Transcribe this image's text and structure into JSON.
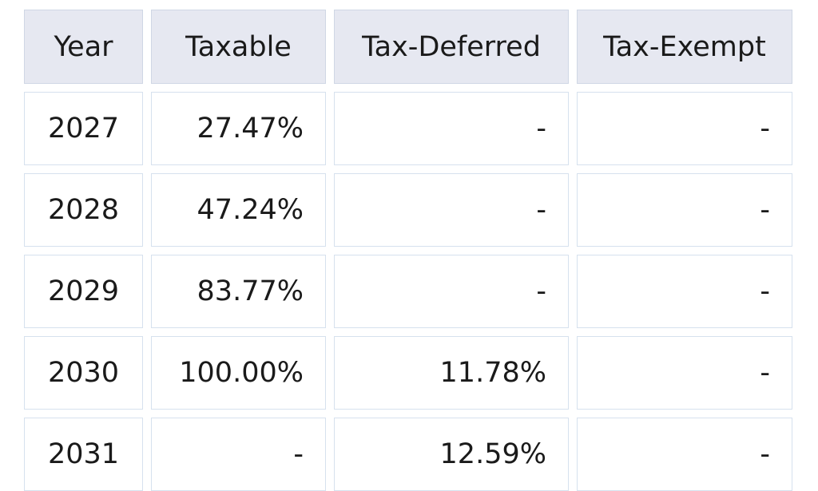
{
  "table": {
    "headers": [
      "Year",
      "Taxable",
      "Tax-Deferred",
      "Tax-Exempt"
    ],
    "rows": [
      [
        "2027",
        "27.47%",
        "-",
        "-"
      ],
      [
        "2028",
        "47.24%",
        "-",
        "-"
      ],
      [
        "2029",
        "83.77%",
        "-",
        "-"
      ],
      [
        "2030",
        "100.00%",
        "11.78%",
        "-"
      ],
      [
        "2031",
        "-",
        "12.59%",
        "-"
      ]
    ]
  },
  "colors": {
    "header_background": "#e6e8f1",
    "cell_border": "#d6e1ee",
    "text": "#1a1a1a"
  }
}
